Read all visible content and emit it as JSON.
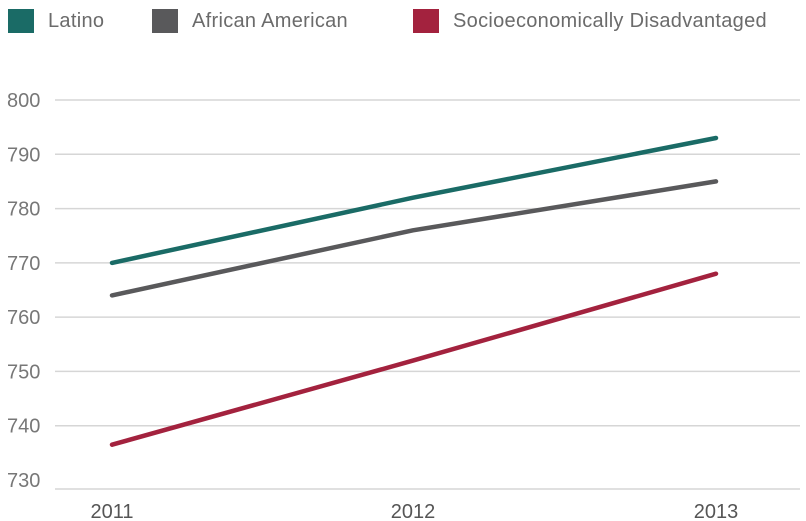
{
  "chart_data": {
    "type": "line",
    "x": [
      "2011",
      "2012",
      "2013"
    ],
    "series": [
      {
        "name": "Latino",
        "values": [
          770,
          782,
          793
        ],
        "color": "#1a6b66"
      },
      {
        "name": "African American",
        "values": [
          764,
          776,
          785
        ],
        "color": "#59595b"
      },
      {
        "name": "Socioeconomically Disadvantaged",
        "values": [
          736.5,
          752,
          768
        ],
        "color": "#a3223e"
      }
    ],
    "yticks": [
      800,
      790,
      780,
      770,
      760,
      750,
      740,
      730
    ],
    "ylim": [
      730,
      800
    ],
    "grid": true,
    "legend_position": "top"
  }
}
